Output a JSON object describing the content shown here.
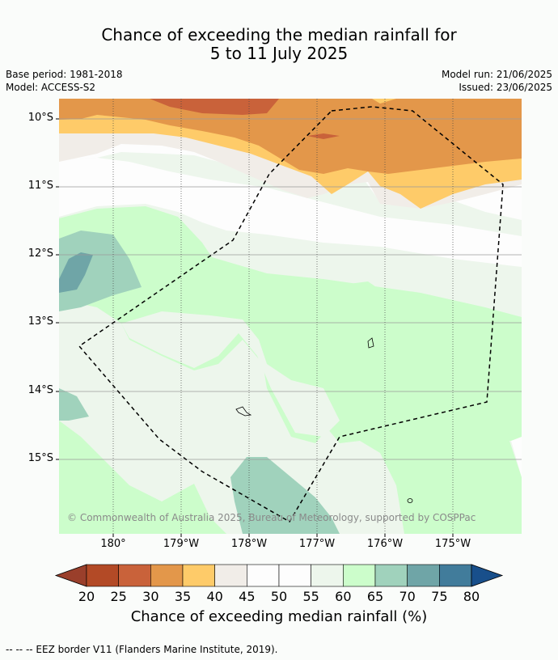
{
  "title": {
    "line1": "Chance of exceeding the median rainfall for",
    "line2": "5 to 11 July 2025"
  },
  "meta": {
    "base_period": "Base period: 1981-2018",
    "model": "Model: ACCESS-S2",
    "model_run": "Model run: 21/06/2025",
    "issued": "Issued: 23/06/2025"
  },
  "map": {
    "y_ticks": [
      "10°S",
      "11°S",
      "12°S",
      "13°S",
      "14°S",
      "15°S"
    ],
    "x_ticks": [
      "180°",
      "179°W",
      "178°W",
      "177°W",
      "176°W",
      "175°W"
    ],
    "copyright": "© Commonwealth of Australia 2025, Bureau of Meteorology, supported by COSPPac"
  },
  "colorbar": {
    "ticks": [
      "20",
      "25",
      "30",
      "35",
      "40",
      "45",
      "50",
      "55",
      "60",
      "65",
      "70",
      "75",
      "80"
    ],
    "colors": [
      "#b34a26",
      "#c9623a",
      "#e3974a",
      "#fecb69",
      "#f1ede8",
      "#fdfdfd",
      "#fdfdfd",
      "#edf6ec",
      "#ccfdcb",
      "#a0d2bc",
      "#6fa5a7",
      "#417c9b"
    ],
    "under_color": "#9a3f2b",
    "over_color": "#184f8b",
    "label": "Chance of exceeding median rainfall (%)"
  },
  "footer": "-- -- -- EEZ border V11 (Flanders Marine Institute, 2019)."
}
